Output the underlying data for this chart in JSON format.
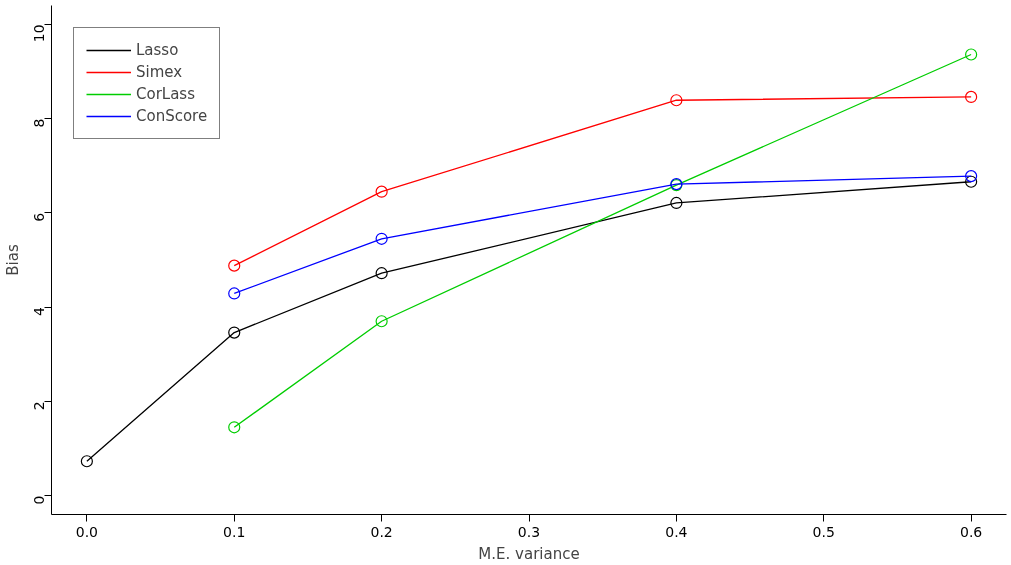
{
  "chart_data": {
    "type": "line",
    "xlabel": "M.E. variance",
    "ylabel": "Bias",
    "marker": "circle",
    "line_style": "solid",
    "grid": false,
    "legend": "top left",
    "xlim": [
      -0.024,
      0.624
    ],
    "ylim": [
      -0.4,
      10.4
    ],
    "xticks": [
      {
        "value": 0,
        "label": "0.0"
      },
      0.1,
      0.2,
      0.3,
      0.4,
      0.5,
      0.6
    ],
    "yticks": [
      0,
      2,
      4,
      6,
      8,
      10
    ],
    "series": [
      {
        "name": "Lasso",
        "color": "#000000",
        "x": [
          0,
          0.1,
          0.2,
          0.4,
          0.6
        ],
        "values": [
          0.73,
          3.46,
          4.72,
          6.21,
          6.66
        ]
      },
      {
        "name": "Simex",
        "color": "#ff0000",
        "x": [
          0.1,
          0.2,
          0.4,
          0.6
        ],
        "values": [
          4.88,
          6.45,
          8.39,
          8.46
        ]
      },
      {
        "name": "CorLass",
        "color": "#00cd00",
        "x": [
          0.1,
          0.2,
          0.4,
          0.6
        ],
        "values": [
          1.45,
          3.7,
          6.59,
          9.36
        ]
      },
      {
        "name": "ConScore",
        "color": "#0000ff",
        "x": [
          0.1,
          0.2,
          0.4,
          0.6
        ],
        "values": [
          4.29,
          5.45,
          6.61,
          6.78
        ]
      }
    ]
  }
}
